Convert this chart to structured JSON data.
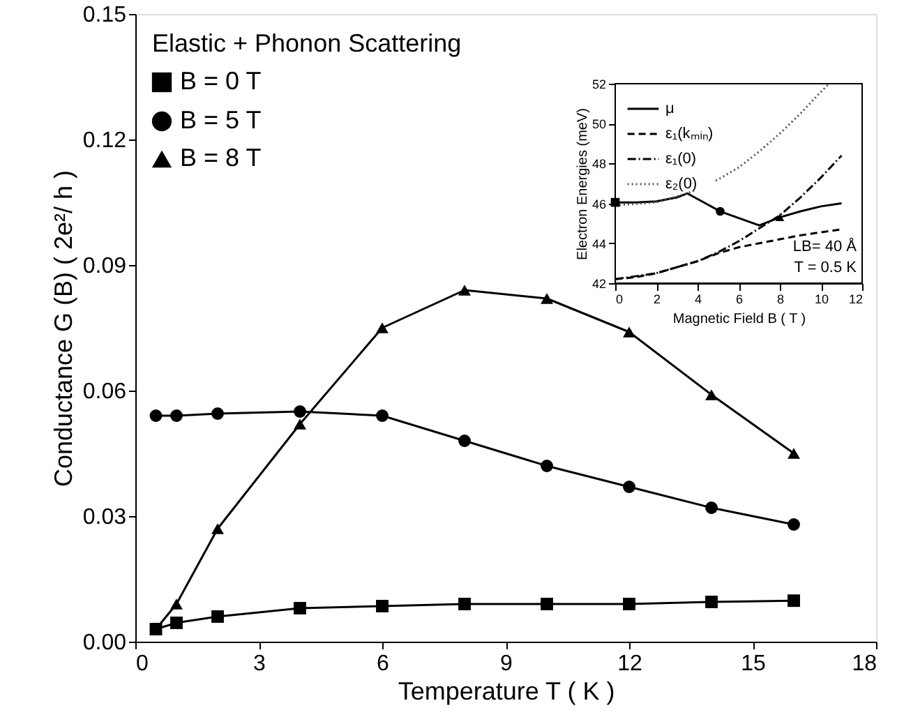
{
  "chart_data": [
    {
      "type": "line",
      "xlabel": "Temperature  T    ( K )",
      "ylabel": "Conductance  G (B)    ( 2e²/ h )",
      "annotations": [
        "Elastic + Phonon Scattering"
      ],
      "xlim": [
        0,
        18
      ],
      "xticks": [
        0,
        3,
        6,
        9,
        12,
        15,
        18
      ],
      "ylim": [
        0,
        0.15
      ],
      "yticks": [
        {
          "value": 0,
          "label": "0.00"
        },
        {
          "value": 0.03,
          "label": "0.03"
        },
        {
          "value": 0.06,
          "label": "0.06"
        },
        {
          "value": 0.09,
          "label": "0.09"
        },
        {
          "value": 0.12,
          "label": "0.12"
        },
        {
          "value": 0.15,
          "label": "0.15"
        }
      ],
      "legend": "top left",
      "grid": false,
      "line_style": "solid",
      "x": [
        0.5,
        1,
        2,
        4,
        6,
        8,
        10,
        12,
        14,
        16
      ],
      "series": [
        {
          "name": "B = 0 T",
          "color": "#000000",
          "marker": "square",
          "values": [
            0.003,
            0.0045,
            0.006,
            0.008,
            0.0085,
            0.009,
            0.009,
            0.009,
            0.0095,
            0.0098
          ]
        },
        {
          "name": "B = 5 T",
          "color": "#000000",
          "marker": "circle",
          "values": [
            0.054,
            0.054,
            0.0545,
            0.055,
            0.054,
            0.048,
            0.042,
            0.037,
            0.032,
            0.028
          ]
        },
        {
          "name": "B = 8 T",
          "color": "#000000",
          "marker": "triangle",
          "values": [
            0.003,
            0.009,
            0.027,
            0.052,
            0.075,
            0.084,
            0.082,
            0.074,
            0.059,
            0.045
          ]
        }
      ]
    },
    {
      "type": "line",
      "xlabel": "Magnetic Field  B    ( T )",
      "ylabel": "Electron Energies   (meV)",
      "annotations": [
        "LB= 40 Å",
        "T = 0.5 K"
      ],
      "xlim": [
        0,
        12
      ],
      "xticks": [
        0,
        2,
        4,
        6,
        8,
        10,
        12
      ],
      "ylim": [
        42,
        52
      ],
      "yticks": [
        42,
        44,
        46,
        48,
        50,
        52
      ],
      "legend": "top left",
      "grid": false,
      "series": [
        {
          "name": "μ",
          "color": "#000000",
          "line_style": "solid",
          "marker": "none",
          "x": [
            0,
            1,
            2,
            3,
            3.5,
            5.1,
            7,
            7.5,
            8,
            9,
            10,
            11
          ],
          "values": [
            46.05,
            46.05,
            46.1,
            46.3,
            46.5,
            45.6,
            44.9,
            45.1,
            45.3,
            45.6,
            45.85,
            46
          ]
        },
        {
          "name": "ε₁(kₘᵢₙ)",
          "color": "#000000",
          "line_style": "dashed",
          "marker": "none",
          "x": [
            0,
            1,
            2,
            3,
            4,
            5,
            6,
            7,
            8,
            9,
            10,
            11
          ],
          "values": [
            42.2,
            42.3,
            42.5,
            42.8,
            43.1,
            43.5,
            43.8,
            44,
            44.2,
            44.4,
            44.55,
            44.7
          ]
        },
        {
          "name": "ε₁(0)",
          "color": "#000000",
          "line_style": "dashdot",
          "marker": "none",
          "x": [
            0,
            2,
            4,
            5,
            6,
            7,
            8,
            9,
            10,
            11
          ],
          "values": [
            42.2,
            42.5,
            43.1,
            43.55,
            44.1,
            44.75,
            45.4,
            46.3,
            47.3,
            48.4
          ]
        },
        {
          "name": "ε₂(0)",
          "color": "#555555",
          "line_style": "dotted",
          "marker": "none",
          "x": [
            0,
            2,
            3.5,
            5,
            6,
            7,
            8,
            9,
            10,
            10.4
          ],
          "values": [
            45.9,
            46.05,
            46.5,
            47.2,
            47.8,
            48.6,
            49.5,
            50.5,
            51.6,
            52
          ]
        },
        {
          "type": "scatter",
          "color": "#000000",
          "marker": "square",
          "x": [
            0
          ],
          "values": [
            46.05
          ]
        },
        {
          "type": "scatter",
          "color": "#000000",
          "marker": "circle",
          "x": [
            5.1
          ],
          "values": [
            45.6
          ]
        },
        {
          "type": "scatter",
          "color": "#000000",
          "marker": "triangle",
          "x": [
            8
          ],
          "values": [
            45.3
          ]
        }
      ]
    }
  ]
}
